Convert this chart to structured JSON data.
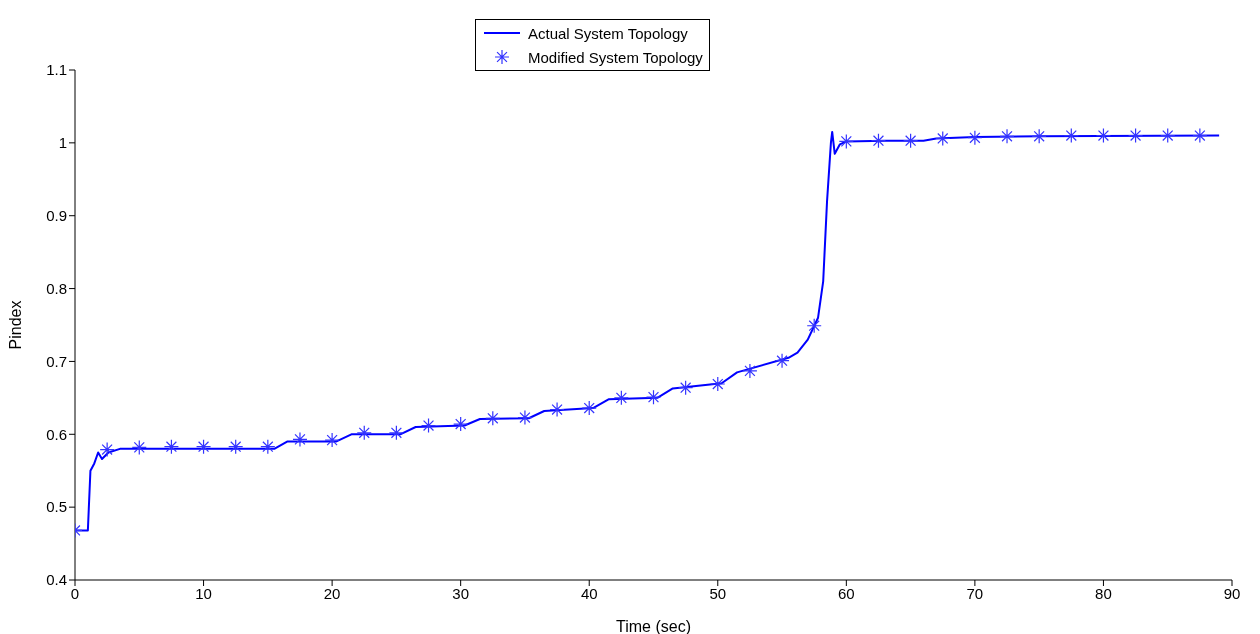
{
  "chart_data": {
    "type": "line",
    "xlabel": "Time (sec)",
    "ylabel": "Pindex",
    "xlim": [
      0,
      90
    ],
    "xticks": [
      0,
      10,
      20,
      30,
      40,
      50,
      60,
      70,
      80,
      90
    ],
    "ylim": [
      0.4,
      1.1
    ],
    "yticks": [
      0.4,
      0.5,
      0.6,
      0.7,
      0.8,
      0.9,
      1,
      1.1
    ],
    "grid": false,
    "legend": "top",
    "series": [
      {
        "name": "Actual System Topology",
        "color": "#0000ff",
        "marker": "none",
        "line_style": "solid",
        "x": [
          0,
          1,
          1.2,
          1.5,
          1.8,
          2.1,
          2.6,
          3.5,
          15.5,
          16.5,
          20.3,
          21.5,
          25.3,
          26.5,
          30.3,
          31.5,
          35.3,
          36.5,
          40.3,
          41.5,
          45.3,
          46.5,
          50.3,
          51.5,
          55.5,
          56.2,
          57,
          57.8,
          58.2,
          58.5,
          58.8,
          58.9,
          59.1,
          59.5,
          60,
          63,
          66,
          67,
          70,
          75,
          89
        ],
        "values": [
          0.468,
          0.468,
          0.55,
          0.56,
          0.575,
          0.566,
          0.575,
          0.58,
          0.58,
          0.59,
          0.59,
          0.6,
          0.6,
          0.61,
          0.612,
          0.621,
          0.622,
          0.632,
          0.636,
          0.648,
          0.65,
          0.663,
          0.67,
          0.685,
          0.705,
          0.712,
          0.73,
          0.76,
          0.81,
          0.92,
          1.0,
          1.015,
          0.985,
          0.998,
          1.002,
          1.003,
          1.003,
          1.006,
          1.008,
          1.009,
          1.01
        ]
      },
      {
        "name": "Modified System Topology",
        "type": "scatter",
        "color": "#3333ff",
        "marker": "cross",
        "x": [
          0,
          2.5,
          5,
          7.5,
          10,
          12.5,
          15,
          17.5,
          20,
          22.5,
          25,
          27.5,
          30,
          32.5,
          35,
          37.5,
          40,
          42.5,
          45,
          47.5,
          50,
          52.5,
          55,
          57.5,
          60,
          62.5,
          65,
          67.5,
          70,
          72.5,
          75,
          77.5,
          80,
          82.5,
          85,
          87.5
        ],
        "values": [
          0.468,
          0.579,
          0.582,
          0.583,
          0.583,
          0.583,
          0.583,
          0.593,
          0.592,
          0.602,
          0.602,
          0.612,
          0.614,
          0.622,
          0.623,
          0.634,
          0.636,
          0.65,
          0.651,
          0.664,
          0.669,
          0.687,
          0.701,
          0.749,
          1.002,
          1.003,
          1.003,
          1.006,
          1.007,
          1.009,
          1.009,
          1.01,
          1.01,
          1.01,
          1.01,
          1.01
        ]
      }
    ]
  }
}
